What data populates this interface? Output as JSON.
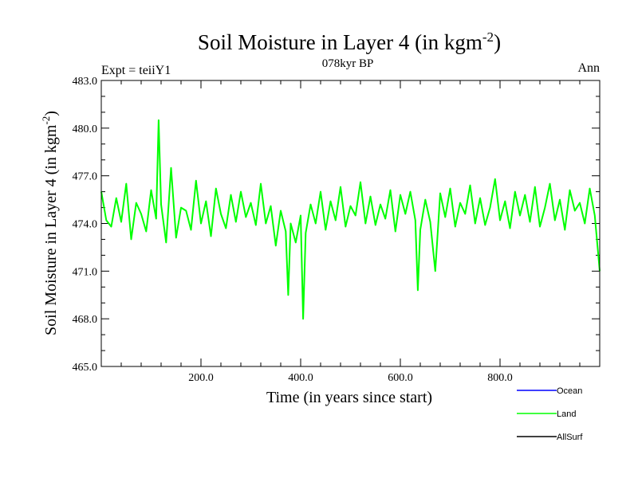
{
  "chart_data": {
    "type": "line",
    "title": "Soil Moisture in Layer 4 (in kgm",
    "title_superscript": "-2",
    "title_close": ")",
    "subtitle": "078kyr BP",
    "left_label": "Expt = teiiY1",
    "right_label": "Ann",
    "xlabel": "Time (in years since start)",
    "ylabel": "Soil Moisture in Layer 4 (in kgm",
    "ylabel_superscript": "-2",
    "ylabel_close": ")",
    "xlim": [
      0,
      1000
    ],
    "ylim": [
      465.0,
      483.0
    ],
    "x_ticks": [
      200,
      400,
      600,
      800
    ],
    "x_tick_labels": [
      "200.0",
      "400.0",
      "600.0",
      "800.0"
    ],
    "y_ticks": [
      465,
      468,
      471,
      474,
      477,
      480,
      483
    ],
    "y_tick_labels": [
      "465.0",
      "468.0",
      "471.0",
      "474.0",
      "477.0",
      "480.0",
      "483.0"
    ],
    "legend": [
      {
        "label": "Ocean",
        "color": "#0000ff"
      },
      {
        "label": "Land",
        "color": "#00ff00"
      },
      {
        "label": "AllSurf",
        "color": "#000000"
      }
    ],
    "legend_position": "bottom-right",
    "grid": false,
    "series": [
      {
        "name": "Land",
        "color": "#00ff00",
        "x": [
          0,
          10,
          20,
          30,
          40,
          50,
          60,
          70,
          80,
          90,
          100,
          110,
          115,
          120,
          130,
          140,
          150,
          160,
          170,
          180,
          190,
          200,
          210,
          220,
          230,
          240,
          250,
          260,
          270,
          280,
          290,
          300,
          310,
          320,
          330,
          340,
          350,
          360,
          370,
          375,
          380,
          390,
          400,
          405,
          410,
          420,
          430,
          440,
          450,
          460,
          470,
          480,
          490,
          500,
          510,
          520,
          530,
          540,
          550,
          560,
          570,
          580,
          590,
          600,
          610,
          620,
          630,
          635,
          640,
          650,
          660,
          670,
          680,
          690,
          700,
          710,
          720,
          730,
          740,
          750,
          760,
          770,
          780,
          790,
          800,
          810,
          820,
          830,
          840,
          850,
          860,
          870,
          880,
          890,
          900,
          910,
          920,
          930,
          940,
          950,
          960,
          970,
          980,
          990,
          1000
        ],
        "y": [
          476.0,
          474.2,
          473.8,
          475.6,
          474.1,
          476.5,
          473.0,
          475.3,
          474.6,
          473.5,
          476.1,
          474.3,
          480.5,
          475.2,
          472.8,
          477.5,
          473.1,
          475.0,
          474.8,
          473.6,
          476.7,
          474.0,
          475.4,
          473.2,
          476.2,
          474.6,
          473.7,
          475.8,
          474.1,
          476.0,
          474.4,
          475.3,
          473.9,
          476.5,
          474.0,
          475.1,
          472.6,
          474.8,
          473.5,
          469.5,
          474.0,
          472.8,
          474.5,
          468.0,
          473.4,
          475.2,
          474.0,
          476.0,
          473.6,
          475.4,
          474.2,
          476.3,
          473.8,
          475.1,
          474.5,
          476.6,
          474.0,
          475.7,
          473.9,
          475.2,
          474.3,
          476.1,
          473.5,
          475.8,
          474.6,
          476.0,
          474.2,
          469.8,
          473.6,
          475.5,
          474.1,
          471.0,
          475.9,
          474.4,
          476.2,
          473.8,
          475.3,
          474.6,
          476.4,
          474.0,
          475.6,
          473.9,
          475.0,
          476.8,
          474.2,
          475.4,
          473.7,
          476.0,
          474.5,
          475.8,
          474.1,
          476.3,
          473.8,
          475.0,
          476.5,
          474.2,
          475.5,
          473.6,
          476.1,
          474.8,
          475.3,
          474.0,
          476.2,
          474.5,
          471.0
        ]
      }
    ]
  }
}
